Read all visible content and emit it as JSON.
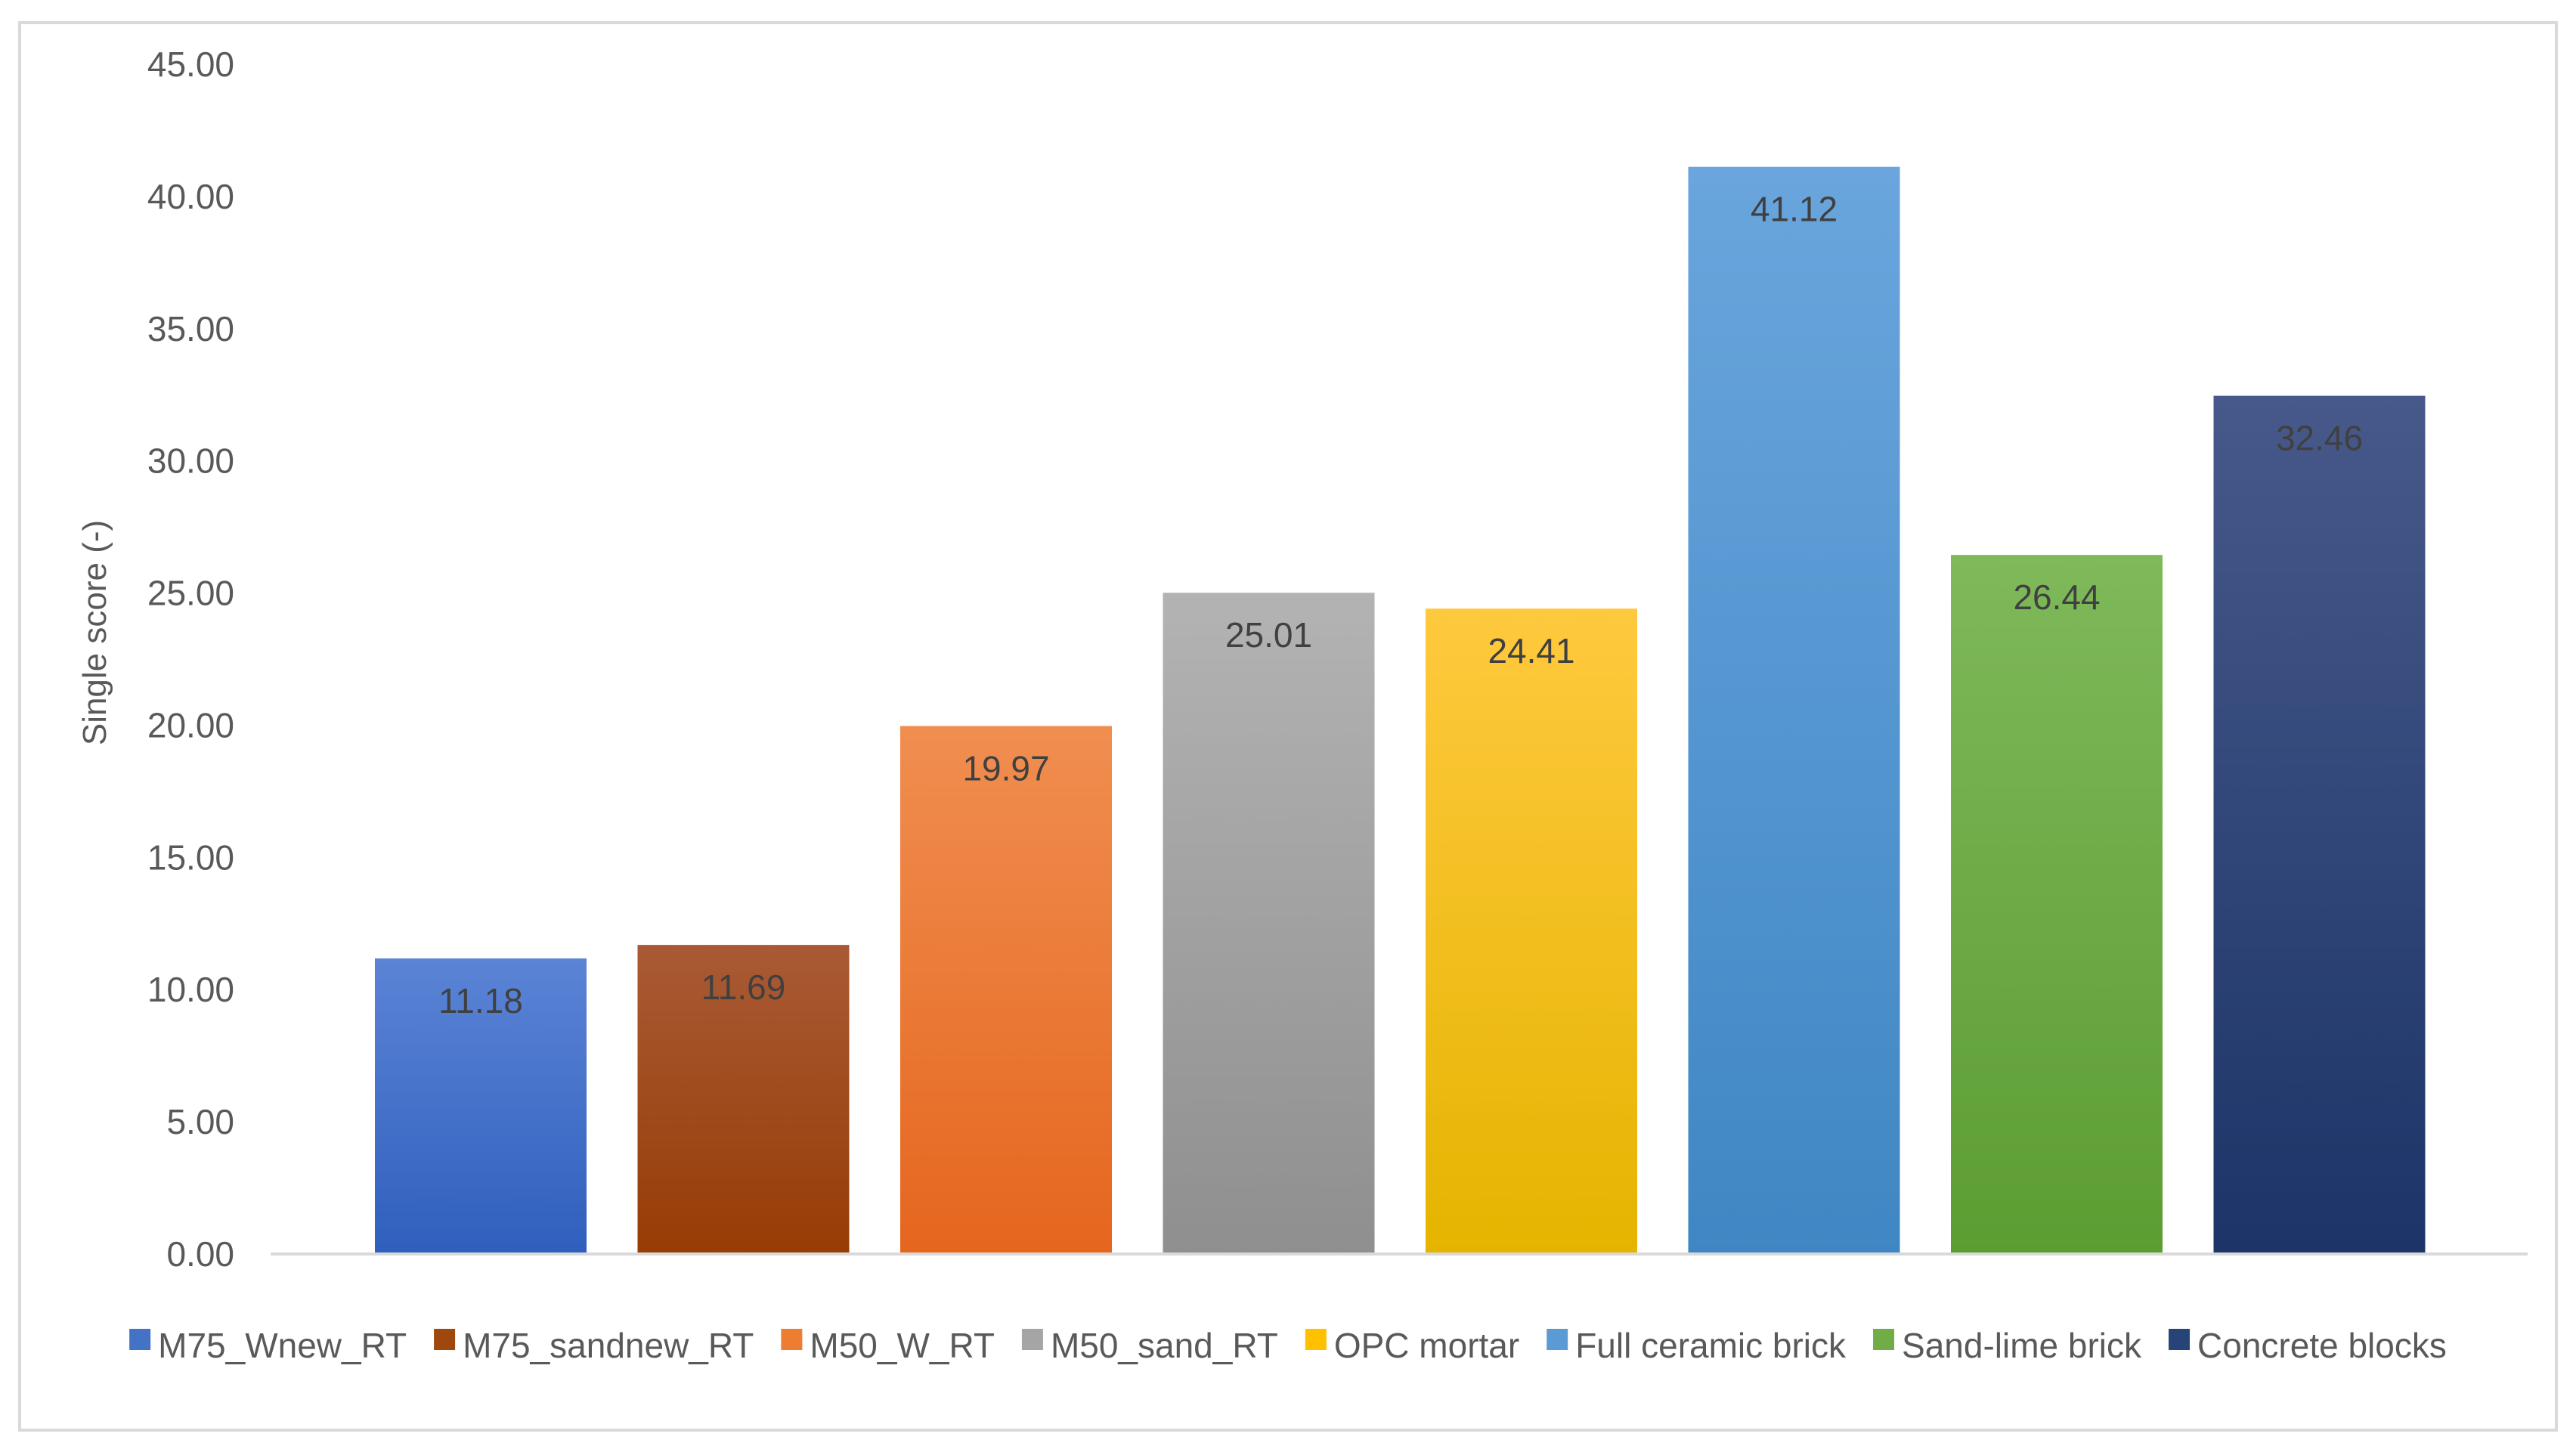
{
  "chart_data": {
    "type": "bar",
    "categories": [
      "M75_Wnew_RT",
      "M75_sandnew_RT",
      "M50_W_RT",
      "M50_sand_RT",
      "OPC mortar",
      "Full ceramic brick",
      "Sand-lime brick",
      "Concrete blocks"
    ],
    "values": [
      11.18,
      11.69,
      19.97,
      25.01,
      24.41,
      41.12,
      26.44,
      32.46
    ],
    "data_labels": [
      "11.18",
      "11.69",
      "19.97",
      "25.01",
      "24.41",
      "41.12",
      "26.44",
      "32.46"
    ],
    "colors": [
      [
        "#5b84d6",
        "#2f5fbd"
      ],
      [
        "#a95a35",
        "#973c05"
      ],
      [
        "#f08e50",
        "#e5661e"
      ],
      [
        "#b3b3b3",
        "#8f8f8f"
      ],
      [
        "#ffc93e",
        "#e5b400"
      ],
      [
        "#6aa5dd",
        "#3f87c4"
      ],
      [
        "#7fb95a",
        "#5c9d32"
      ],
      [
        "#47598a",
        "#1c3468"
      ]
    ],
    "legend_colors": [
      "#4472c4",
      "#9e480e",
      "#ed7d31",
      "#a5a5a5",
      "#ffc000",
      "#5b9bd5",
      "#70ad47",
      "#264478"
    ],
    "title": "",
    "xlabel": "",
    "ylabel": "Single score (-)",
    "ylim": [
      0,
      45
    ],
    "yticks": [
      "0.00",
      "5.00",
      "10.00",
      "15.00",
      "20.00",
      "25.00",
      "30.00",
      "35.00",
      "40.00",
      "45.00"
    ],
    "grid": false,
    "legend": "bottom"
  }
}
